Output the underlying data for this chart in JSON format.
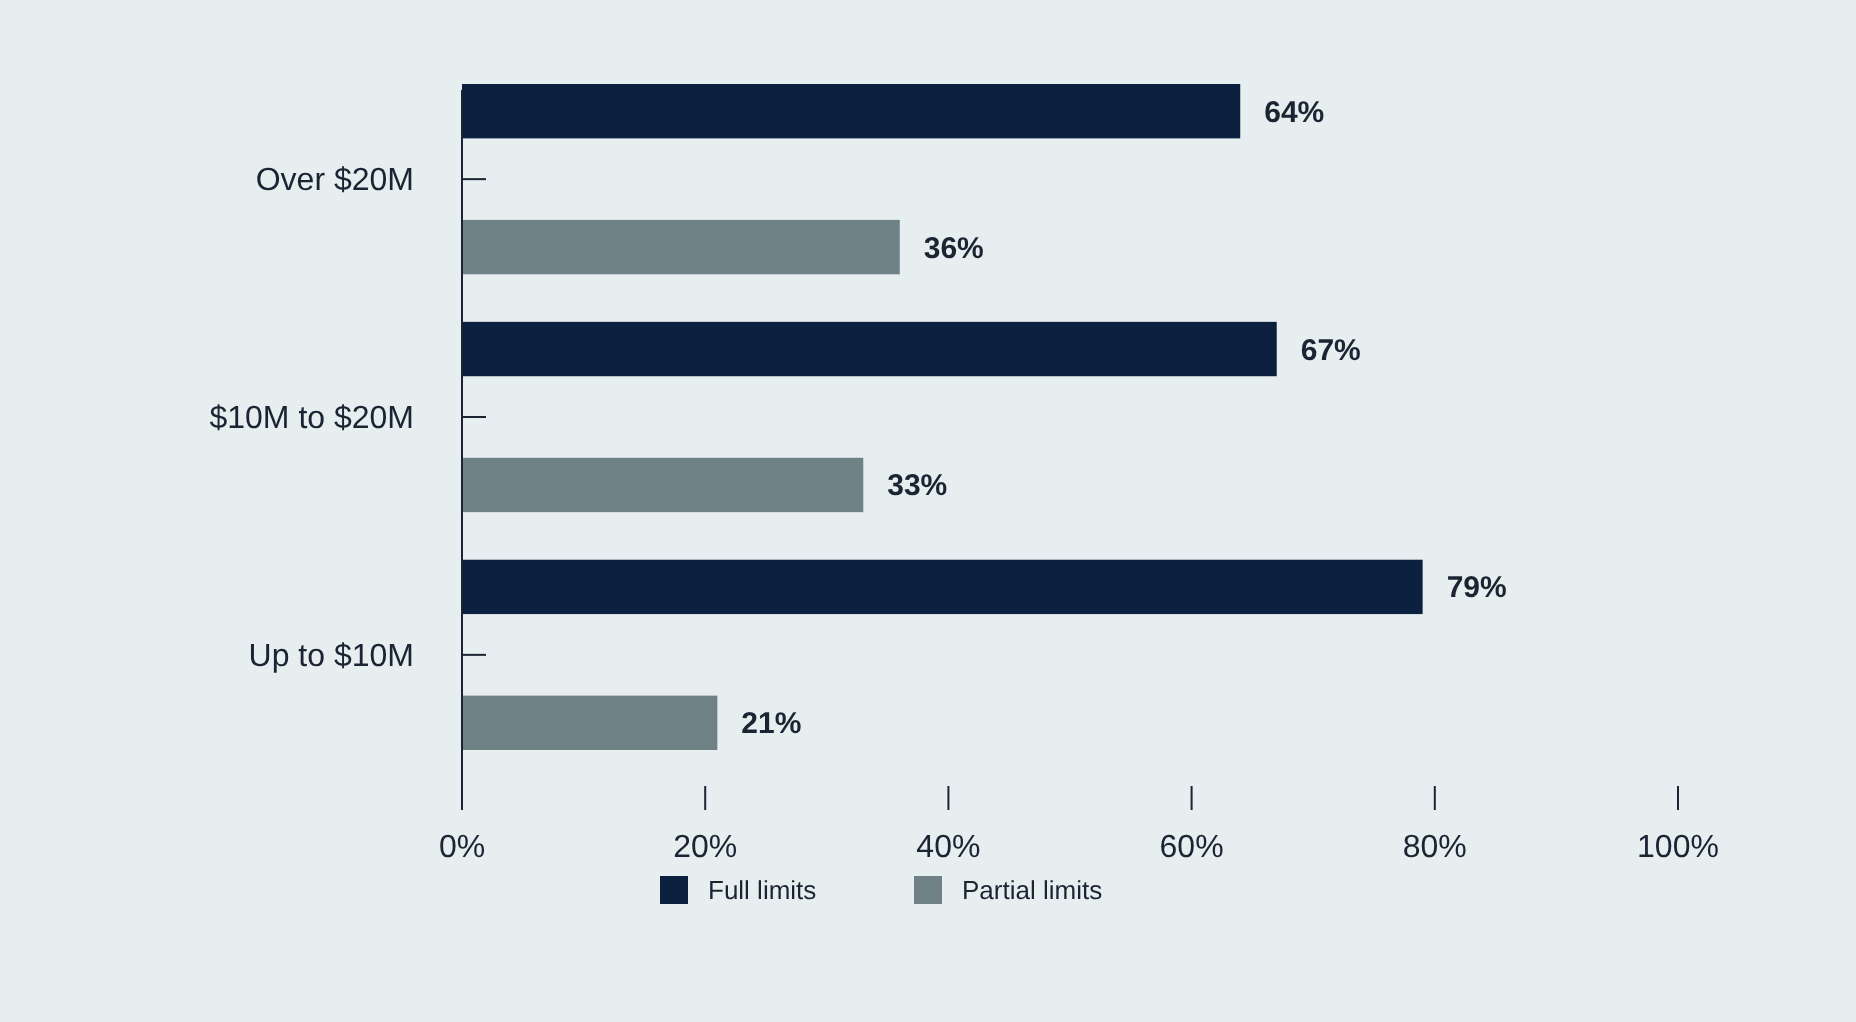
{
  "chart_data": {
    "type": "bar",
    "orientation": "horizontal",
    "categories": [
      "Over $20M",
      "$10M to $20M",
      "Up to $10M"
    ],
    "series": [
      {
        "name": "Full limits",
        "color": "#0b1f3f",
        "values": [
          64,
          67,
          79
        ]
      },
      {
        "name": "Partial limits",
        "color": "#6e8185",
        "values": [
          36,
          33,
          21
        ]
      }
    ],
    "xlim": [
      0,
      100
    ],
    "xticks": [
      {
        "value": 0,
        "label": "0%"
      },
      {
        "value": 20,
        "label": "20%"
      },
      {
        "value": 40,
        "label": "40%"
      },
      {
        "value": 60,
        "label": "60%"
      },
      {
        "value": 80,
        "label": "80%"
      },
      {
        "value": 100,
        "label": "100%"
      }
    ],
    "value_labels": [
      [
        "64%",
        "67%",
        "79%"
      ],
      [
        "36%",
        "33%",
        "21%"
      ]
    ],
    "legend": "bottom",
    "grid": false
  }
}
